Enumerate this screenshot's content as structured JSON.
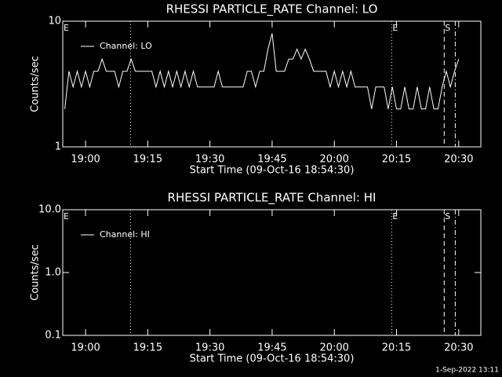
{
  "chart_data": [
    {
      "type": "line",
      "title": "RHESSI PARTICLE_RATE Channel: LO",
      "x_label": "Start Time (09-Oct-16 18:54:30)",
      "y_label": "Counts/sec",
      "log_y": true,
      "ylim": [
        1,
        10
      ],
      "yticks": [
        1,
        10
      ],
      "xlim": [
        "18:54:30",
        "20:35:20"
      ],
      "xticks": [
        "19:00",
        "19:15",
        "19:30",
        "19:45",
        "20:00",
        "20:15",
        "20:30"
      ],
      "legend": "top-left",
      "series": [
        {
          "name": "Channel: LO",
          "color": "#ffffff",
          "x": [
            "18:55",
            "18:56",
            "18:57",
            "18:58",
            "18:59",
            "19:00",
            "19:01",
            "19:02",
            "19:03",
            "19:04",
            "19:05",
            "19:06",
            "19:07",
            "19:08",
            "19:09",
            "19:10",
            "19:11",
            "19:12",
            "19:13",
            "19:14",
            "19:15",
            "19:16",
            "19:17",
            "19:18",
            "19:19",
            "19:20",
            "19:21",
            "19:22",
            "19:23",
            "19:24",
            "19:25",
            "19:26",
            "19:27",
            "19:28",
            "19:29",
            "19:30",
            "19:31",
            "19:32",
            "19:33",
            "19:34",
            "19:35",
            "19:36",
            "19:37",
            "19:38",
            "19:39",
            "19:40",
            "19:41",
            "19:42",
            "19:43",
            "19:44",
            "19:45",
            "19:46",
            "19:47",
            "19:48",
            "19:49",
            "19:50",
            "19:51",
            "19:52",
            "19:53",
            "19:54",
            "19:55",
            "19:56",
            "19:57",
            "19:58",
            "19:59",
            "20:00",
            "20:01",
            "20:02",
            "20:03",
            "20:04",
            "20:05",
            "20:06",
            "20:07",
            "20:08",
            "20:09",
            "20:10",
            "20:11",
            "20:12",
            "20:13",
            "20:14",
            "20:15",
            "20:16",
            "20:17",
            "20:18",
            "20:19",
            "20:20",
            "20:21",
            "20:22",
            "20:23",
            "20:24",
            "20:25",
            "20:26",
            "20:27",
            "20:28",
            "20:29",
            "20:30"
          ],
          "values": [
            2,
            4,
            3,
            4,
            3,
            4,
            3,
            4,
            4,
            5,
            4,
            4,
            4,
            3,
            4,
            4,
            5,
            4,
            4,
            4,
            4,
            4,
            3,
            4,
            3,
            4,
            3,
            4,
            3,
            4,
            3,
            4,
            3,
            3,
            3,
            3,
            3,
            4,
            3,
            3,
            3,
            3,
            3,
            3,
            4,
            4,
            3,
            4,
            4,
            6,
            8,
            4,
            4,
            4,
            5,
            5,
            6,
            5,
            6,
            5,
            4,
            4,
            4,
            4,
            3,
            4,
            3,
            4,
            3,
            4,
            3,
            3,
            3,
            3,
            2,
            3,
            3,
            3,
            2,
            3,
            2,
            2,
            3,
            2,
            2,
            3,
            2,
            2,
            3,
            2,
            2,
            3,
            4,
            3,
            4,
            5
          ]
        }
      ],
      "markers": [
        {
          "x": "18:54:30",
          "label": "E"
        },
        {
          "x": "20:13:50",
          "label": "E"
        },
        {
          "x": "20:26:30",
          "label": "S"
        }
      ],
      "vlines": [
        {
          "x": "19:10:50",
          "style": "dotted"
        },
        {
          "x": "20:13:50",
          "style": "dotted"
        },
        {
          "x": "20:26:30",
          "style": "dashed"
        },
        {
          "x": "20:29:10",
          "style": "dashdot"
        }
      ]
    },
    {
      "type": "line",
      "title": "RHESSI PARTICLE_RATE Channel: HI",
      "x_label": "Start Time (09-Oct-16 18:54:30)",
      "y_label": "Counts/sec",
      "log_y": true,
      "ylim": [
        0.1,
        10
      ],
      "yticks": [
        {
          "value": 0.1,
          "label": "0.1"
        },
        {
          "value": 1,
          "label": "1.0"
        },
        {
          "value": 10,
          "label": "10.0"
        }
      ],
      "xlim": [
        "18:54:30",
        "20:35:20"
      ],
      "xticks": [
        "19:00",
        "19:15",
        "19:30",
        "19:45",
        "20:00",
        "20:15",
        "20:30"
      ],
      "legend": "top-left",
      "series": [
        {
          "name": "Channel: HI",
          "color": "#ffffff",
          "x": [],
          "values": []
        }
      ],
      "markers": [
        {
          "x": "18:54:30",
          "label": "E"
        },
        {
          "x": "20:13:50",
          "label": "E"
        },
        {
          "x": "20:26:30",
          "label": "S"
        }
      ],
      "vlines": [
        {
          "x": "19:10:50",
          "style": "dotted"
        },
        {
          "x": "20:13:50",
          "style": "dotted"
        },
        {
          "x": "20:26:30",
          "style": "dashed"
        },
        {
          "x": "20:29:10",
          "style": "dashdot"
        }
      ]
    }
  ],
  "footer": "1-Sep-2022 13:11"
}
